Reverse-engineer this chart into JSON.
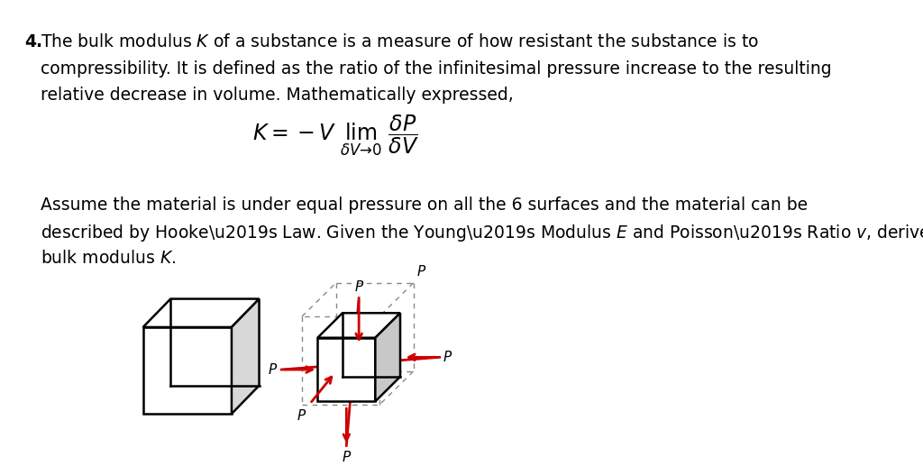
{
  "background_color": "#ffffff",
  "text_color": "#000000",
  "red_color": "#cc0000",
  "line1_num": "4.",
  "line1_text": "The bulk modulus $\\mathit{K}$ of a substance is a measure of how resistant the substance is to",
  "line2": "compressibility. It is defined as the ratio of the infinitesimal pressure increase to the resulting",
  "line3": "relative decrease in volume. Mathematically expressed,",
  "line4": "Assume the material is under equal pressure on all the 6 surfaces and the material can be",
  "line5": "described by Hooke’s Law. Given the Young’s Modulus $\\mathit{E}$ and Poisson’s Ratio $\\mathit{v}$, derive the",
  "line6": "bulk modulus $\\mathit{K}$.",
  "fontsize_main": 13.5,
  "fontsize_formula": 17
}
